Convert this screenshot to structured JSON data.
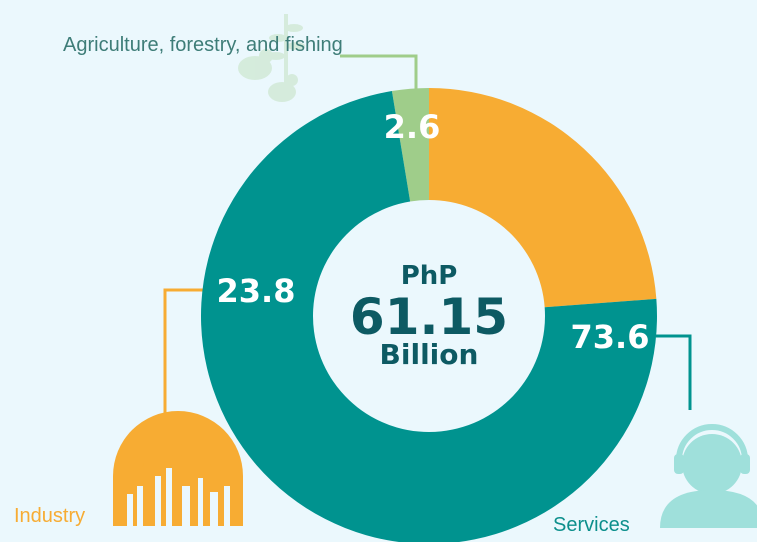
{
  "chart_data": {
    "type": "pie",
    "variant": "donut",
    "categories": [
      "Agriculture, forestry, and fishing",
      "Industry",
      "Services"
    ],
    "values": [
      2.6,
      23.8,
      73.6
    ],
    "value_labels": [
      "2.6",
      "23.8",
      "73.6"
    ],
    "colors": [
      "#9fcd8a",
      "#f7ac33",
      "#00938f"
    ],
    "label_colors": [
      "#3e7d78",
      "#f7ac33",
      "#0c8f8c"
    ],
    "legend": "none"
  },
  "center": {
    "currency": "PhP",
    "amount": "61.15",
    "unit": "Billion"
  },
  "icons": {
    "agriculture": "wheat-and-chicken-icon",
    "industry": "factory-gear-icon",
    "services": "customer-service-headset-icon"
  },
  "colors": {
    "background": "#ebf8fd",
    "center_text": "#0d5a63"
  }
}
